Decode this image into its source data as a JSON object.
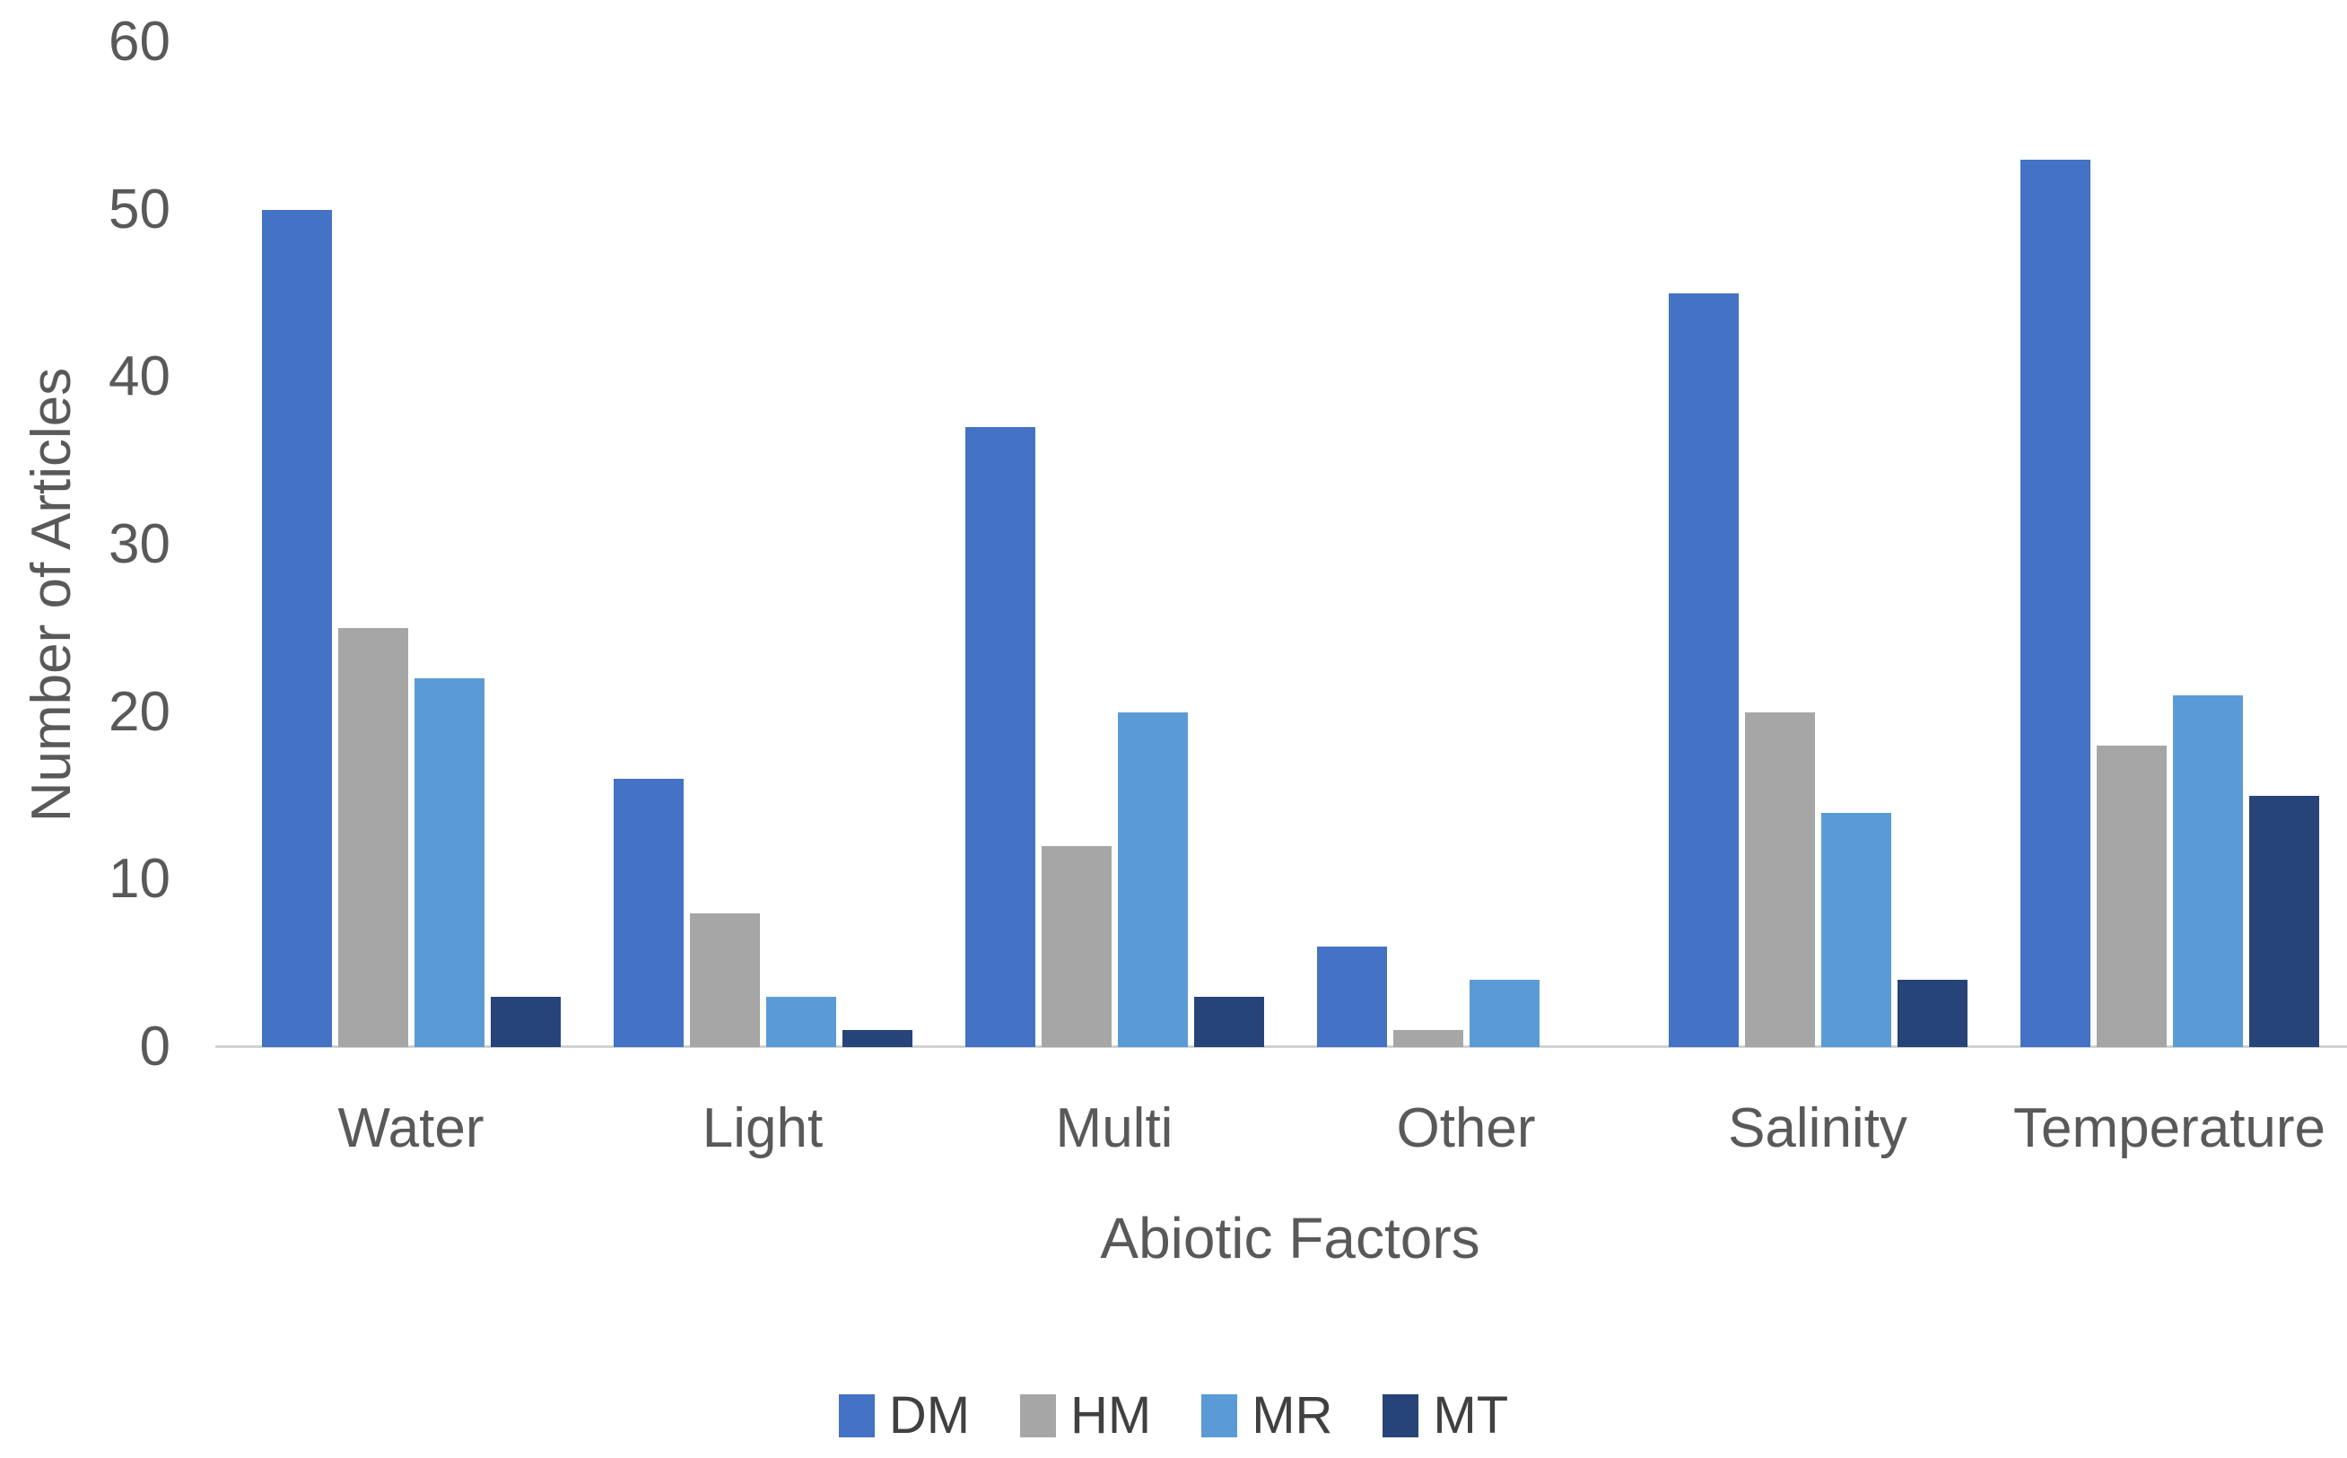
{
  "chart_data": {
    "type": "bar",
    "title": "",
    "categories": [
      "Water",
      "Light",
      "Multi",
      "Other",
      "Salinity",
      "Temperature"
    ],
    "series": [
      {
        "name": "DM",
        "color": "#4472C4",
        "values": [
          50,
          16,
          37,
          6,
          45,
          53
        ]
      },
      {
        "name": "HM",
        "color": "#A6A6A6",
        "pattern": "speckled",
        "values": [
          25,
          8,
          12,
          1,
          20,
          18
        ]
      },
      {
        "name": "MR",
        "color": "#5B9BD5",
        "values": [
          22,
          3,
          20,
          4,
          14,
          21
        ]
      },
      {
        "name": "MT",
        "color": "#264478",
        "values": [
          3,
          1,
          3,
          0,
          4,
          15
        ]
      }
    ],
    "xlabel": "Abiotic Factors",
    "ylabel": "Number of Articles",
    "ylim": [
      0,
      60
    ],
    "yticks": [
      0,
      10,
      20,
      30,
      40,
      50,
      60
    ],
    "grid": false,
    "legend_position": "bottom",
    "text_color": "#595959",
    "axis_line_color": "#D2D2D2"
  }
}
